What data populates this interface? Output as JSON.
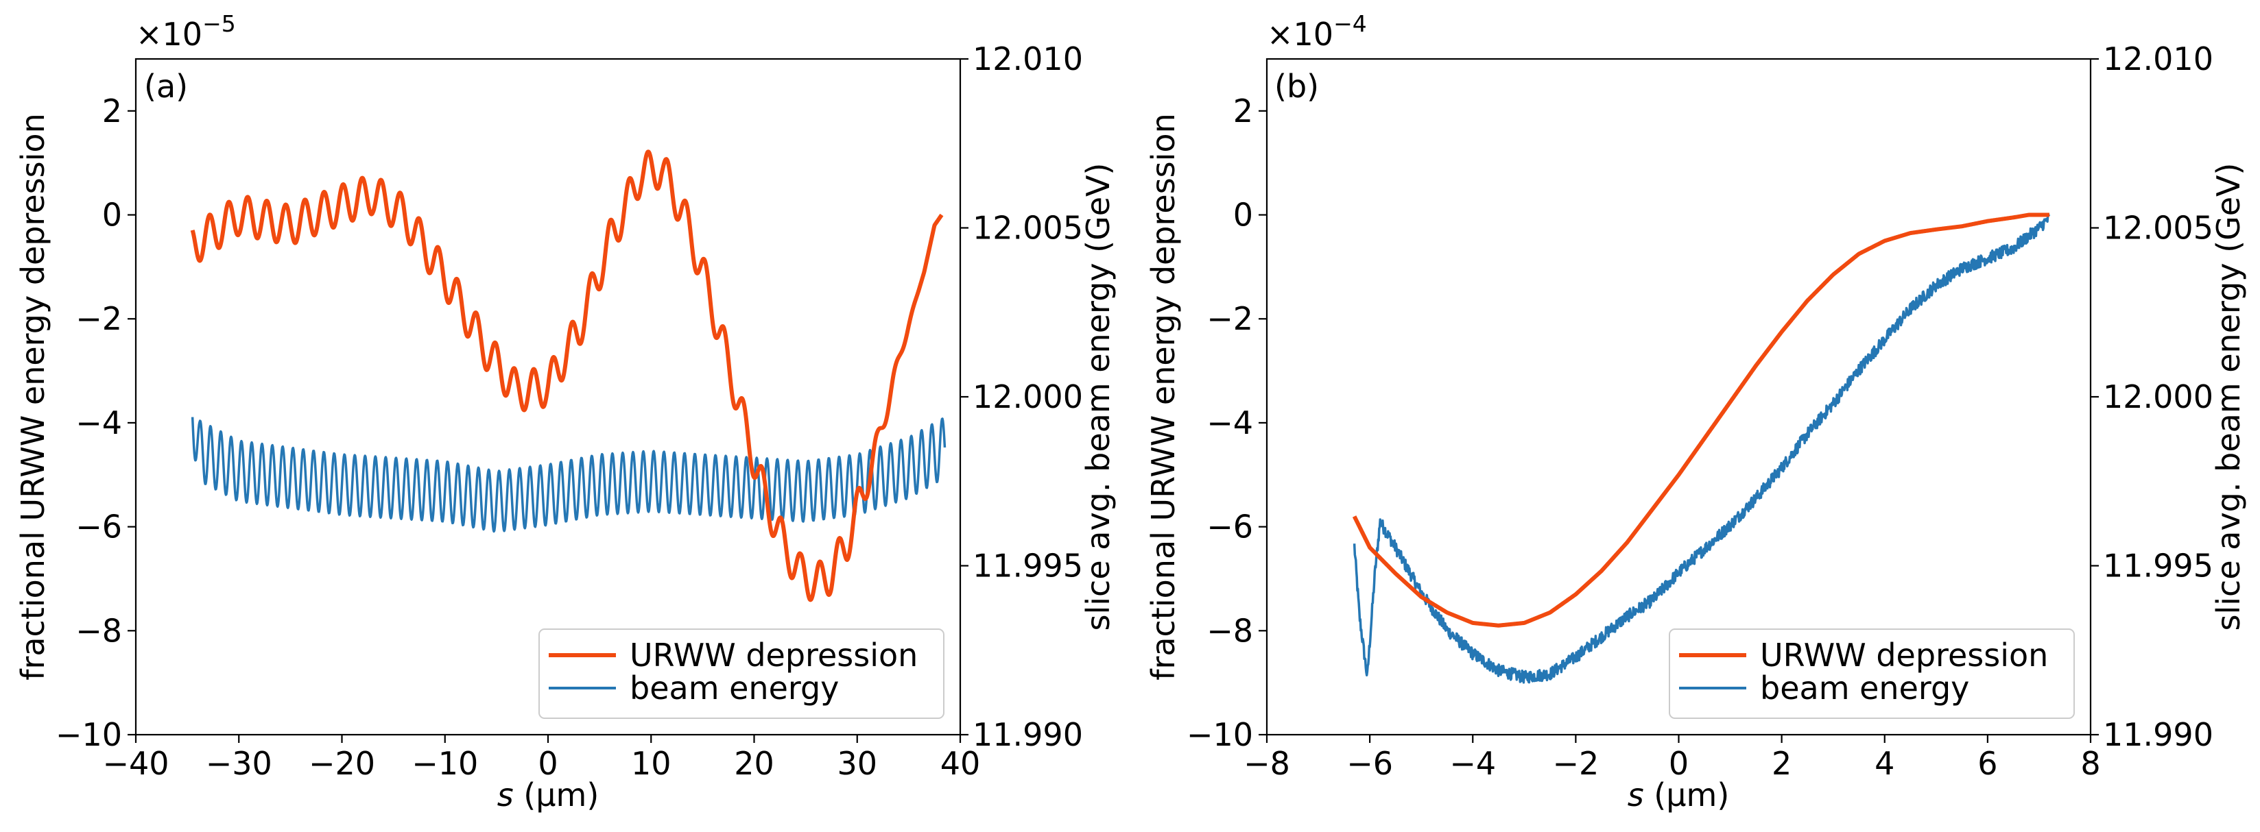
{
  "colors": {
    "urww": "#f14a0f",
    "beam": "#2577b4"
  },
  "chart_data": [
    {
      "type": "line",
      "panel_label": "(a)",
      "xlabel": "s (µm)",
      "xlabel_var": "s",
      "xlabel_unit": " (µm)",
      "ylabel_left": "fractional URWW energy depression",
      "ylabel_right": "slice avg. beam energy (GeV)",
      "multiplier": "×10",
      "multiplier_exp": "−5",
      "xlim": [
        -40,
        40
      ],
      "ylim_left": [
        -10,
        3
      ],
      "ylim_right": [
        11.99,
        12.01
      ],
      "xticks": [
        -40,
        -30,
        -20,
        -10,
        0,
        10,
        20,
        30,
        40
      ],
      "xtick_labels": [
        "−40",
        "−30",
        "−20",
        "−10",
        "0",
        "10",
        "20",
        "30",
        "40"
      ],
      "yticks_left": [
        -10,
        -8,
        -6,
        -4,
        -2,
        0,
        2
      ],
      "ytick_labels_left": [
        "−10",
        "−8",
        "−6",
        "−4",
        "−2",
        "0",
        "2"
      ],
      "yticks_right": [
        11.99,
        11.995,
        12.0,
        12.005,
        12.01
      ],
      "ytick_labels_right": [
        "11.990",
        "11.995",
        "12.000",
        "12.005",
        "12.010"
      ],
      "legend": [
        "URWW depression",
        "beam energy"
      ],
      "legend_position": "lower right",
      "series": [
        {
          "name": "URWW depression",
          "axis": "left",
          "x": [
            -34.5,
            -30,
            -25,
            -20,
            -17,
            -14,
            -10,
            -6,
            -3,
            0,
            3,
            6,
            9,
            11,
            13,
            15,
            17,
            19,
            21,
            23,
            24.5,
            26,
            27.5,
            29,
            30.5,
            32,
            33.5,
            35,
            36.5,
            37.5,
            38.2
          ],
          "y": [
            -0.6,
            0.0,
            -0.2,
            0.2,
            0.4,
            0.0,
            -1.2,
            -2.6,
            -3.4,
            -3.3,
            -2.2,
            -0.5,
            0.8,
            0.9,
            0.1,
            -1.1,
            -2.5,
            -4.0,
            -5.4,
            -6.4,
            -6.9,
            -7.1,
            -6.9,
            -6.3,
            -5.4,
            -4.4,
            -3.2,
            -2.1,
            -1.1,
            -0.2,
            0.0
          ],
          "oscillation_period": 1.85,
          "oscillation_amplitude": 0.38,
          "oscillation_until": 30
        },
        {
          "name": "beam energy",
          "axis": "right",
          "x": [
            -34.5,
            -33.8,
            -30,
            -25,
            -20,
            -15,
            -10,
            -5,
            0,
            5,
            10,
            15,
            20,
            25,
            30,
            35,
            38.5
          ],
          "y": [
            11.9994,
            11.9984,
            11.9978,
            11.9976,
            11.9974,
            11.9973,
            11.9972,
            11.9969,
            11.9971,
            11.9974,
            11.9975,
            11.9974,
            11.9973,
            11.9972,
            11.9974,
            11.9979,
            11.9985
          ],
          "oscillation_period": 1.0,
          "oscillation_amplitude": 0.0009
        }
      ]
    },
    {
      "type": "line",
      "panel_label": "(b)",
      "xlabel": "s (µm)",
      "xlabel_var": "s",
      "xlabel_unit": " (µm)",
      "ylabel_left": "fractional URWW energy depression",
      "ylabel_right": "slice avg. beam energy (GeV)",
      "multiplier": "×10",
      "multiplier_exp": "−4",
      "xlim": [
        -8,
        8
      ],
      "ylim_left": [
        -10,
        3
      ],
      "ylim_right": [
        11.99,
        12.01
      ],
      "xticks": [
        -8,
        -6,
        -4,
        -2,
        0,
        2,
        4,
        6,
        8
      ],
      "xtick_labels": [
        "−8",
        "−6",
        "−4",
        "−2",
        "0",
        "2",
        "4",
        "6",
        "8"
      ],
      "yticks_left": [
        -10,
        -8,
        -6,
        -4,
        -2,
        0,
        2
      ],
      "ytick_labels_left": [
        "−10",
        "−8",
        "−6",
        "−4",
        "−2",
        "0",
        "2"
      ],
      "yticks_right": [
        11.99,
        11.995,
        12.0,
        12.005,
        12.01
      ],
      "ytick_labels_right": [
        "11.990",
        "11.995",
        "12.000",
        "12.005",
        "12.010"
      ],
      "legend": [
        "URWW depression",
        "beam energy"
      ],
      "legend_position": "lower right",
      "series": [
        {
          "name": "URWW depression",
          "axis": "left",
          "x": [
            -6.3,
            -6.0,
            -5.5,
            -5.0,
            -4.5,
            -4.0,
            -3.5,
            -3.0,
            -2.5,
            -2.0,
            -1.5,
            -1.0,
            -0.5,
            0.0,
            0.5,
            1.0,
            1.5,
            2.0,
            2.5,
            3.0,
            3.5,
            4.0,
            4.5,
            5.0,
            5.5,
            6.0,
            6.5,
            6.8,
            7.2
          ],
          "y": [
            -5.8,
            -6.4,
            -6.9,
            -7.35,
            -7.65,
            -7.85,
            -7.9,
            -7.85,
            -7.65,
            -7.3,
            -6.85,
            -6.3,
            -5.65,
            -5.0,
            -4.3,
            -3.6,
            -2.9,
            -2.25,
            -1.65,
            -1.15,
            -0.75,
            -0.5,
            -0.35,
            -0.28,
            -0.22,
            -0.12,
            -0.05,
            0.0,
            0.0
          ],
          "noise_amplitude": 0
        },
        {
          "name": "beam energy",
          "axis": "right",
          "x": [
            -6.3,
            -6.2,
            -6.05,
            -5.9,
            -5.8,
            -5.6,
            -5.0,
            -4.5,
            -4.0,
            -3.5,
            -3.0,
            -2.5,
            -2.0,
            -1.5,
            -1.0,
            -0.5,
            0.0,
            0.5,
            1.0,
            1.5,
            2.0,
            2.5,
            3.0,
            3.5,
            4.0,
            4.5,
            5.0,
            5.5,
            6.0,
            6.5,
            7.0,
            7.2
          ],
          "y": [
            11.9956,
            11.9935,
            11.9917,
            11.9948,
            11.9963,
            11.9958,
            11.9942,
            11.9931,
            11.9924,
            11.9919,
            11.9917,
            11.9918,
            11.9923,
            11.9929,
            11.9935,
            11.994,
            11.9948,
            11.9955,
            11.9962,
            11.997,
            11.9979,
            11.9989,
            11.9998,
            12.0008,
            12.0017,
            12.0026,
            12.0033,
            12.0038,
            12.0041,
            12.0044,
            12.005,
            12.0053
          ],
          "noise_amplitude": 0.00018
        }
      ]
    }
  ]
}
